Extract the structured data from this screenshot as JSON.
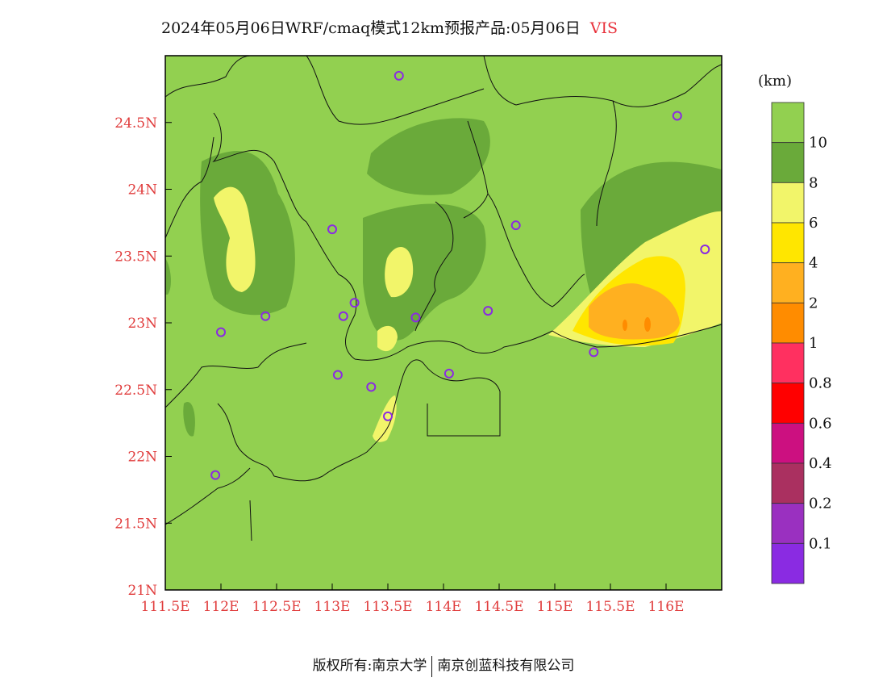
{
  "title": {
    "text": "2024年05月06日WRF/cmaq模式12km预报产品:05月06日",
    "variable": "VIS"
  },
  "axes": {
    "lat_labels": [
      "24.5N",
      "24N",
      "23.5N",
      "23N",
      "22.5N",
      "22N",
      "21.5N",
      "21N"
    ],
    "lon_labels": [
      "111.5E",
      "112E",
      "112.5E",
      "113E",
      "113.5E",
      "114E",
      "114.5E",
      "115E",
      "115.5E",
      "116E"
    ],
    "label_color": "#e03c3c"
  },
  "colorbar": {
    "unit": "(km)",
    "labels": [
      "10",
      "8",
      "6",
      "4",
      "2",
      "1",
      "0.8",
      "0.6",
      "0.4",
      "0.2",
      "0.1"
    ],
    "colors": [
      "#92d050",
      "#6aaa3a",
      "#f2f56a",
      "#ffe600",
      "#ffb020",
      "#ff8c00",
      "#ff3060",
      "#ff0000",
      "#cc1080",
      "#aa3060",
      "#9a30c0",
      "#8a2be2"
    ]
  },
  "stations": [
    {
      "lon": 113.6,
      "lat": 24.85
    },
    {
      "lon": 116.1,
      "lat": 24.55
    },
    {
      "lon": 113.0,
      "lat": 23.7
    },
    {
      "lon": 114.65,
      "lat": 23.73
    },
    {
      "lon": 116.35,
      "lat": 23.55
    },
    {
      "lon": 113.2,
      "lat": 23.15
    },
    {
      "lon": 112.4,
      "lat": 23.05
    },
    {
      "lon": 113.1,
      "lat": 23.05
    },
    {
      "lon": 113.75,
      "lat": 23.04
    },
    {
      "lon": 114.4,
      "lat": 23.09
    },
    {
      "lon": 112.0,
      "lat": 22.93
    },
    {
      "lon": 115.35,
      "lat": 22.78
    },
    {
      "lon": 113.05,
      "lat": 22.61
    },
    {
      "lon": 114.05,
      "lat": 22.62
    },
    {
      "lon": 113.35,
      "lat": 22.52
    },
    {
      "lon": 113.5,
      "lat": 22.3
    },
    {
      "lon": 111.95,
      "lat": 21.86
    }
  ],
  "footer": {
    "left": "版权所有:南京大学",
    "right": "南京创蓝科技有限公司"
  }
}
